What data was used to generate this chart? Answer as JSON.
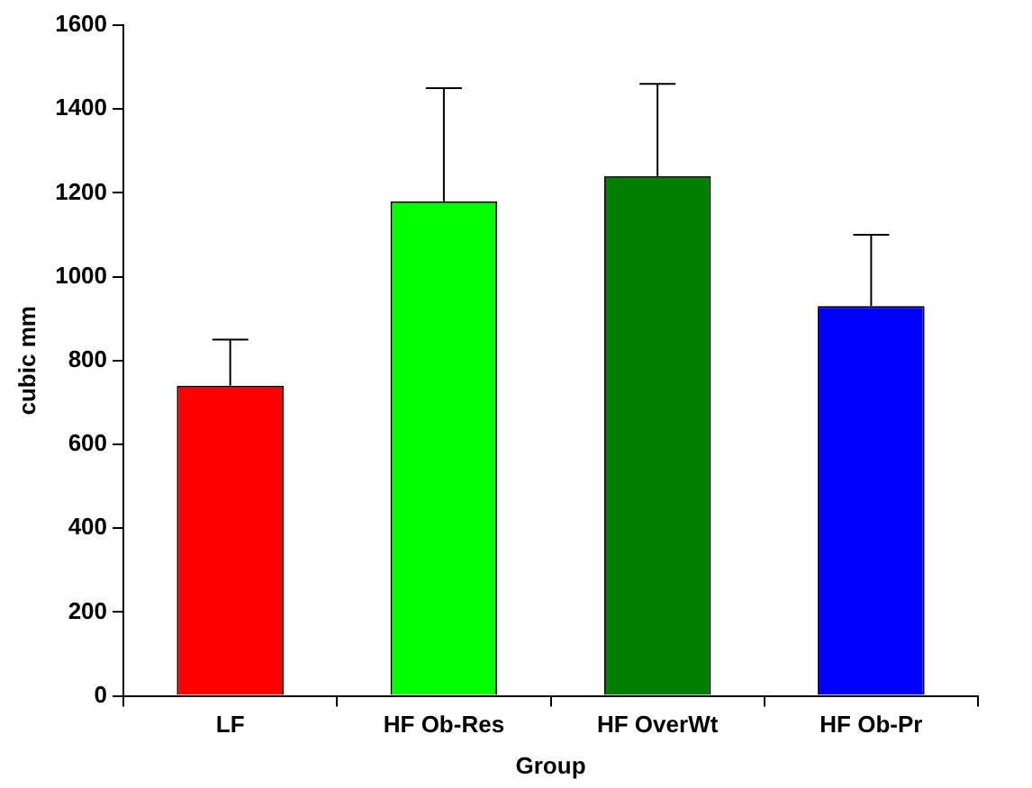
{
  "chart_data": {
    "type": "bar",
    "xlabel": "Group",
    "ylabel": "cubic mm",
    "categories": [
      "LF",
      "HF Ob-Res",
      "HF OverWt",
      "HF Ob-Pr"
    ],
    "values": [
      740,
      1180,
      1240,
      930
    ],
    "colors": [
      "#ff0000",
      "#00ff00",
      "#008000",
      "#0000ff"
    ],
    "errors": [
      [
        740,
        850
      ],
      [
        1180,
        1450
      ],
      [
        1240,
        1460
      ],
      [
        930,
        1100
      ]
    ],
    "ylim": [
      0,
      1600
    ],
    "yticks": [
      0,
      200,
      400,
      600,
      800,
      1000,
      1200,
      1400,
      1600
    ],
    "grid": false,
    "legend": false
  }
}
